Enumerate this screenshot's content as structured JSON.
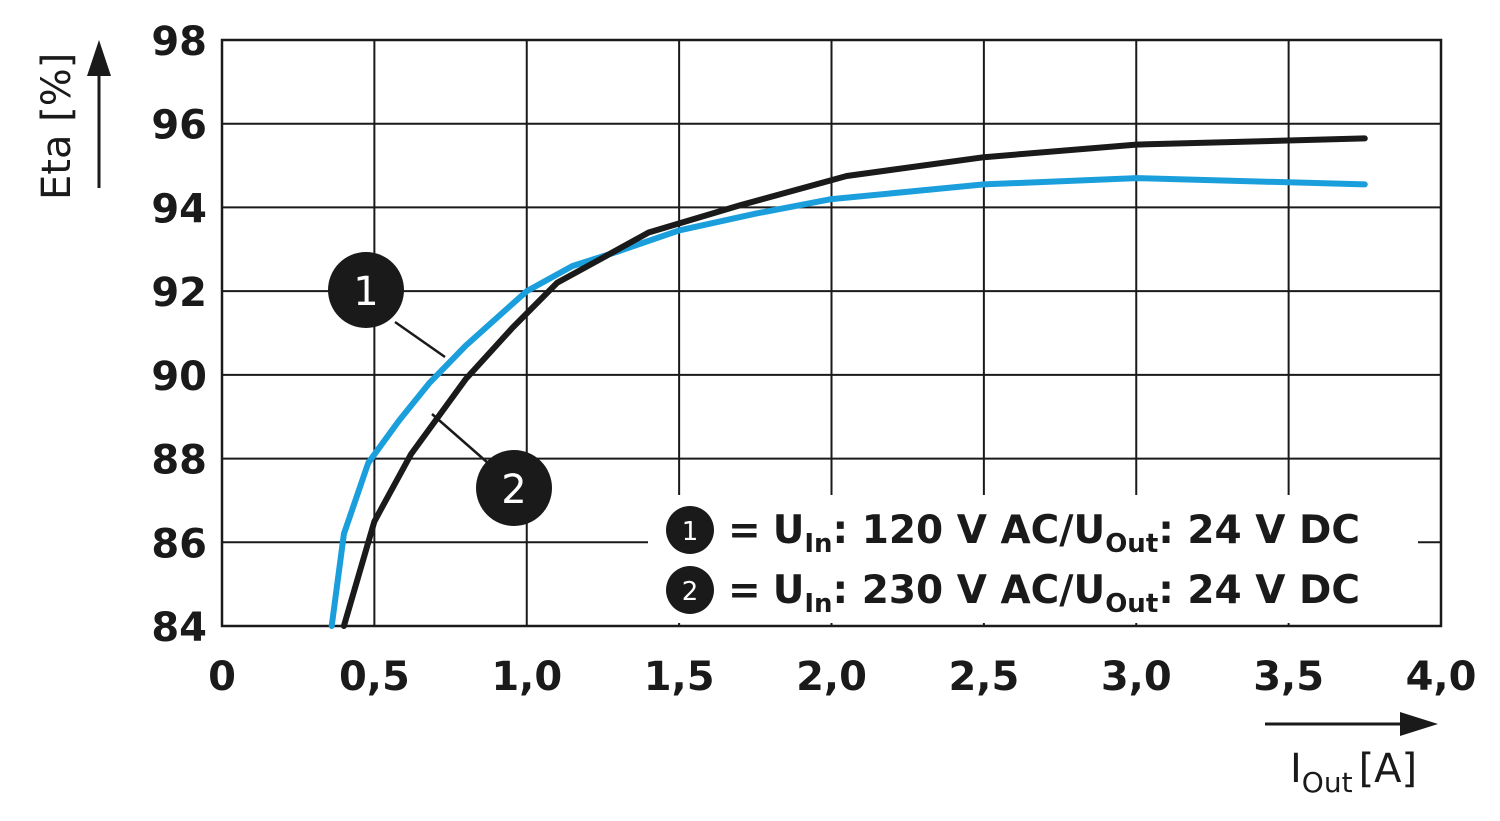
{
  "chart_data": {
    "type": "line",
    "xlabel": "I",
    "xlabel_sub": "Out",
    "xlabel_unit": "[A]",
    "ylabel": "Eta [%]",
    "xlim": [
      0,
      4.0
    ],
    "ylim": [
      84,
      98
    ],
    "x_ticks": [
      0,
      0.5,
      1.0,
      1.5,
      2.0,
      2.5,
      3.0,
      3.5,
      4.0
    ],
    "x_tick_labels": [
      "0",
      "0,5",
      "1,0",
      "1,5",
      "2,0",
      "2,5",
      "3,0",
      "3,5",
      "4,0"
    ],
    "y_ticks": [
      84,
      86,
      88,
      90,
      92,
      94,
      96,
      98
    ],
    "y_tick_labels": [
      "84",
      "86",
      "88",
      "90",
      "92",
      "94",
      "96",
      "98"
    ],
    "grid": true,
    "legend_position": "bottom-right",
    "series": [
      {
        "marker": "1",
        "color": "#1a9fdc",
        "legend": {
          "prefix": "=",
          "u": "U",
          "in_sub": "In",
          "mid": ": 120 V AC/",
          "u2": "U",
          "out_sub": "Out",
          "end": ": 24 V DC"
        },
        "points": [
          [
            0.36,
            84.0
          ],
          [
            0.4,
            86.2
          ],
          [
            0.48,
            87.9
          ],
          [
            0.58,
            88.9
          ],
          [
            0.68,
            89.8
          ],
          [
            0.8,
            90.7
          ],
          [
            1.0,
            92.0
          ],
          [
            1.15,
            92.6
          ],
          [
            1.3,
            92.95
          ],
          [
            1.5,
            93.45
          ],
          [
            1.75,
            93.85
          ],
          [
            2.0,
            94.2
          ],
          [
            2.5,
            94.55
          ],
          [
            3.0,
            94.7
          ],
          [
            3.75,
            94.55
          ]
        ]
      },
      {
        "marker": "2",
        "color": "#1a1a1a",
        "legend": {
          "prefix": "=",
          "u": "U",
          "in_sub": "In",
          "mid": ": 230 V AC/",
          "u2": "U",
          "out_sub": "Out",
          "end": ": 24 V DC"
        },
        "points": [
          [
            0.4,
            84.0
          ],
          [
            0.44,
            85.0
          ],
          [
            0.5,
            86.5
          ],
          [
            0.62,
            88.1
          ],
          [
            0.7,
            88.9
          ],
          [
            0.8,
            89.9
          ],
          [
            0.95,
            91.1
          ],
          [
            1.1,
            92.2
          ],
          [
            1.25,
            92.8
          ],
          [
            1.4,
            93.4
          ],
          [
            1.7,
            94.05
          ],
          [
            2.05,
            94.75
          ],
          [
            2.5,
            95.2
          ],
          [
            3.0,
            95.5
          ],
          [
            3.75,
            95.65
          ]
        ]
      }
    ]
  }
}
